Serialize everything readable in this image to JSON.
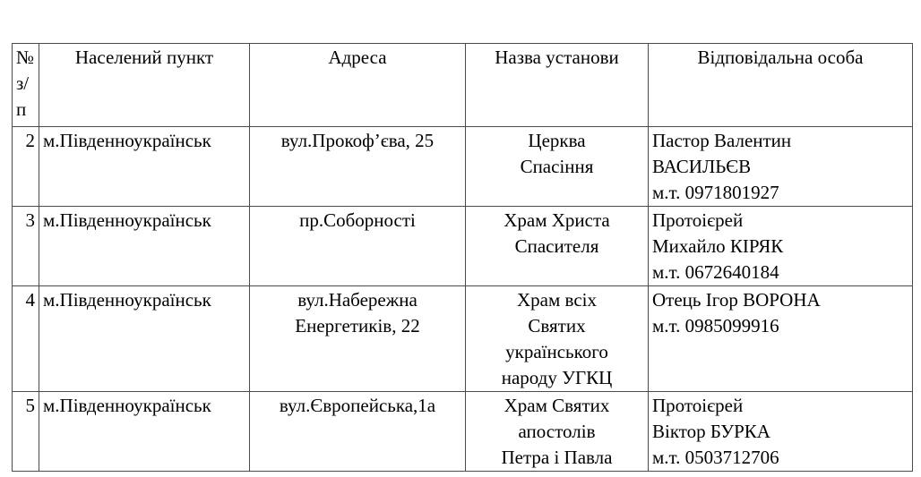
{
  "page": {
    "background_color": "#ffffff",
    "text_color": "#000000",
    "table_border_color": "#4a4a4a"
  },
  "table": {
    "headers": {
      "num": "№\nз/\nп",
      "settlement": "Населений пункт",
      "address": "Адреса",
      "institution": "Назва установи",
      "person": "Відповідальна особа"
    },
    "rows": [
      {
        "num": "2",
        "settlement": "м.Південноукраїнськ",
        "address": "вул.Прокоф’єва, 25",
        "institution": "Церква\nСпасіння",
        "person": "Пастор Валентин\nВАСИЛЬЄВ\nм.т. 0971801927"
      },
      {
        "num": "3",
        "settlement": "м.Південноукраїнськ",
        "address": "пр.Соборності",
        "institution": "Храм Христа\nСпасителя",
        "person": "Протоієрей\nМихайло КІРЯК\nм.т. 0672640184"
      },
      {
        "num": "4",
        "settlement": "м.Південноукраїнськ",
        "address": "вул.Набережна\nЕнергетиків, 22",
        "institution": "Храм всіх\nСвятих\nукраїнського\nнароду УГКЦ",
        "person": "Отець Ігор ВОРОНА\nм.т. 0985099916"
      },
      {
        "num": "5",
        "settlement": "м.Південноукраїнськ",
        "address": "вул.Європейська,1а",
        "institution": "Храм Святих\nапостолів\nПетра і Павла",
        "person": "Протоієрей\nВіктор БУРКА\nм.т. 0503712706"
      }
    ]
  }
}
